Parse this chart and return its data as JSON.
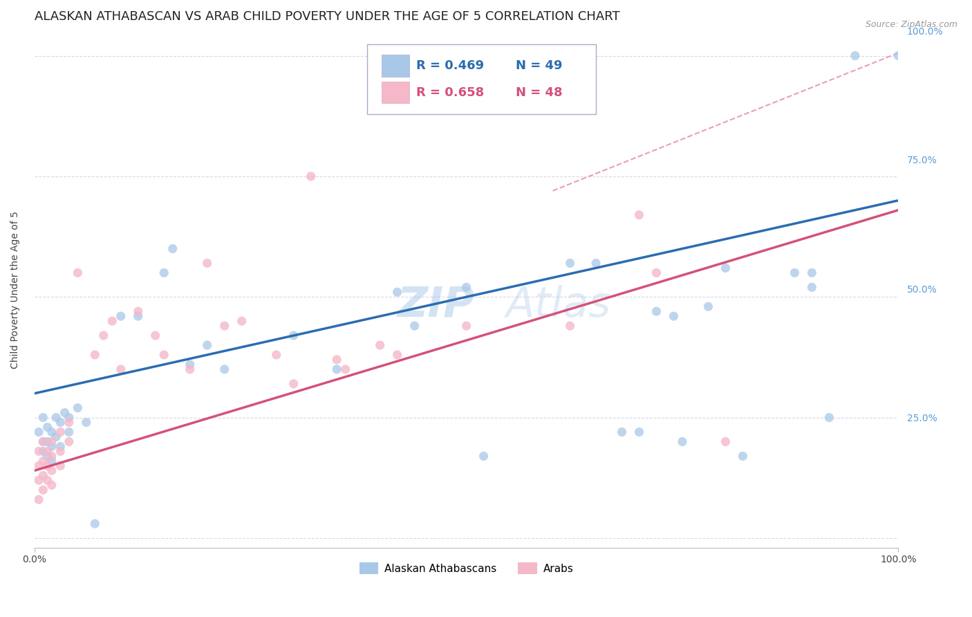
{
  "title": "ALASKAN ATHABASCAN VS ARAB CHILD POVERTY UNDER THE AGE OF 5 CORRELATION CHART",
  "source": "Source: ZipAtlas.com",
  "ylabel": "Child Poverty Under the Age of 5",
  "legend_labels": [
    "Alaskan Athabascans",
    "Arabs"
  ],
  "blue_color": "#a8c8e8",
  "pink_color": "#f4b8c8",
  "blue_line_color": "#2b6cb0",
  "pink_line_color": "#d4517a",
  "diagonal_color": "#e8a0b0",
  "watermark": "ZIPAtlas",
  "blue_scatter": [
    [
      0.005,
      0.22
    ],
    [
      0.01,
      0.25
    ],
    [
      0.01,
      0.2
    ],
    [
      0.01,
      0.18
    ],
    [
      0.015,
      0.23
    ],
    [
      0.015,
      0.2
    ],
    [
      0.015,
      0.17
    ],
    [
      0.02,
      0.22
    ],
    [
      0.02,
      0.19
    ],
    [
      0.02,
      0.16
    ],
    [
      0.025,
      0.25
    ],
    [
      0.025,
      0.21
    ],
    [
      0.03,
      0.24
    ],
    [
      0.03,
      0.19
    ],
    [
      0.035,
      0.26
    ],
    [
      0.04,
      0.25
    ],
    [
      0.04,
      0.22
    ],
    [
      0.05,
      0.27
    ],
    [
      0.06,
      0.24
    ],
    [
      0.07,
      0.03
    ],
    [
      0.1,
      0.46
    ],
    [
      0.12,
      0.46
    ],
    [
      0.15,
      0.55
    ],
    [
      0.16,
      0.6
    ],
    [
      0.18,
      0.36
    ],
    [
      0.2,
      0.4
    ],
    [
      0.22,
      0.35
    ],
    [
      0.3,
      0.42
    ],
    [
      0.35,
      0.35
    ],
    [
      0.42,
      0.51
    ],
    [
      0.44,
      0.44
    ],
    [
      0.5,
      0.52
    ],
    [
      0.52,
      0.17
    ],
    [
      0.62,
      0.57
    ],
    [
      0.65,
      0.57
    ],
    [
      0.68,
      0.22
    ],
    [
      0.7,
      0.22
    ],
    [
      0.72,
      0.47
    ],
    [
      0.74,
      0.46
    ],
    [
      0.75,
      0.2
    ],
    [
      0.78,
      0.48
    ],
    [
      0.8,
      0.56
    ],
    [
      0.82,
      0.17
    ],
    [
      0.88,
      0.55
    ],
    [
      0.9,
      0.52
    ],
    [
      0.9,
      0.55
    ],
    [
      0.92,
      0.25
    ],
    [
      0.95,
      1.0
    ],
    [
      1.0,
      1.0
    ]
  ],
  "pink_scatter": [
    [
      0.005,
      0.18
    ],
    [
      0.005,
      0.15
    ],
    [
      0.005,
      0.12
    ],
    [
      0.005,
      0.08
    ],
    [
      0.01,
      0.2
    ],
    [
      0.01,
      0.16
    ],
    [
      0.01,
      0.13
    ],
    [
      0.01,
      0.1
    ],
    [
      0.015,
      0.18
    ],
    [
      0.015,
      0.15
    ],
    [
      0.015,
      0.12
    ],
    [
      0.02,
      0.2
    ],
    [
      0.02,
      0.17
    ],
    [
      0.02,
      0.14
    ],
    [
      0.02,
      0.11
    ],
    [
      0.03,
      0.22
    ],
    [
      0.03,
      0.18
    ],
    [
      0.03,
      0.15
    ],
    [
      0.04,
      0.24
    ],
    [
      0.04,
      0.2
    ],
    [
      0.05,
      0.55
    ],
    [
      0.07,
      0.38
    ],
    [
      0.08,
      0.42
    ],
    [
      0.09,
      0.45
    ],
    [
      0.1,
      0.35
    ],
    [
      0.12,
      0.47
    ],
    [
      0.14,
      0.42
    ],
    [
      0.15,
      0.38
    ],
    [
      0.18,
      0.35
    ],
    [
      0.2,
      0.57
    ],
    [
      0.22,
      0.44
    ],
    [
      0.24,
      0.45
    ],
    [
      0.28,
      0.38
    ],
    [
      0.3,
      0.32
    ],
    [
      0.32,
      0.75
    ],
    [
      0.35,
      0.37
    ],
    [
      0.36,
      0.35
    ],
    [
      0.4,
      0.4
    ],
    [
      0.42,
      0.38
    ],
    [
      0.5,
      0.44
    ],
    [
      0.62,
      0.44
    ],
    [
      0.7,
      0.67
    ],
    [
      0.72,
      0.55
    ],
    [
      0.8,
      0.2
    ]
  ],
  "xlim": [
    0,
    1
  ],
  "ylim": [
    0,
    1.05
  ],
  "yticks": [
    0.0,
    0.25,
    0.5,
    0.75,
    1.0
  ],
  "ytick_labels": [
    "",
    "25.0%",
    "50.0%",
    "75.0%",
    "100.0%"
  ],
  "grid_color": "#d8d8e8",
  "background_color": "#ffffff",
  "title_fontsize": 13,
  "axis_fontsize": 10,
  "tick_fontsize": 10,
  "blue_line": [
    0.0,
    0.3,
    1.0,
    0.7
  ],
  "pink_line": [
    0.0,
    0.14,
    1.0,
    0.68
  ],
  "diag_line": [
    0.6,
    0.72,
    1.02,
    1.02
  ]
}
